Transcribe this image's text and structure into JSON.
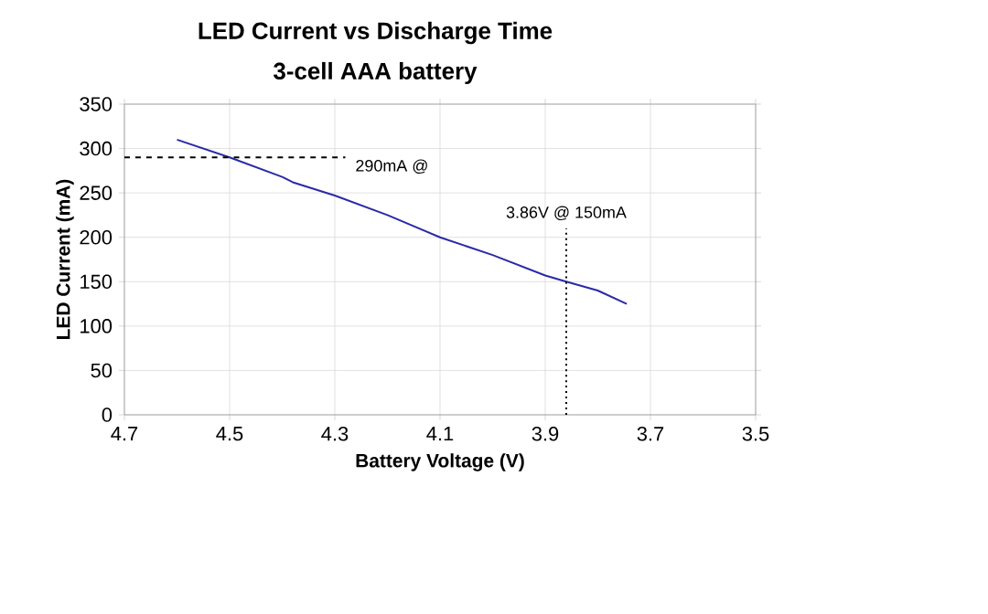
{
  "chart_data": {
    "type": "line",
    "title": "LED Current vs Discharge Time",
    "subtitle": "3-cell AAA battery",
    "xlabel": "Battery Voltage (V)",
    "ylabel": "LED Current (mA)",
    "x": [
      4.6,
      4.5,
      4.4,
      4.38,
      4.3,
      4.2,
      4.1,
      4.0,
      3.9,
      3.86,
      3.8,
      3.745
    ],
    "series": [
      {
        "color": "#2a2aa8",
        "values": [
          310,
          290,
          268,
          262,
          247,
          225,
          200,
          180,
          157,
          150,
          140,
          125
        ]
      }
    ],
    "xlim": [
      4.7,
      3.5
    ],
    "xticks": [
      4.7,
      4.5,
      4.3,
      4.1,
      3.9,
      3.7,
      3.5
    ],
    "ylim": [
      0,
      350
    ],
    "yticks": [
      0,
      50,
      100,
      150,
      200,
      250,
      300,
      350
    ],
    "grid": true,
    "marker": "none",
    "line_style": "solid",
    "ref_lines": [
      {
        "axis": "y",
        "value": 290,
        "label": "290mA @",
        "line_style": "dashed",
        "color": "#000000"
      },
      {
        "axis": "x",
        "value": 3.86,
        "label": "3.86V @ 150mA",
        "line_style": "dotted",
        "color": "#000000"
      }
    ]
  }
}
